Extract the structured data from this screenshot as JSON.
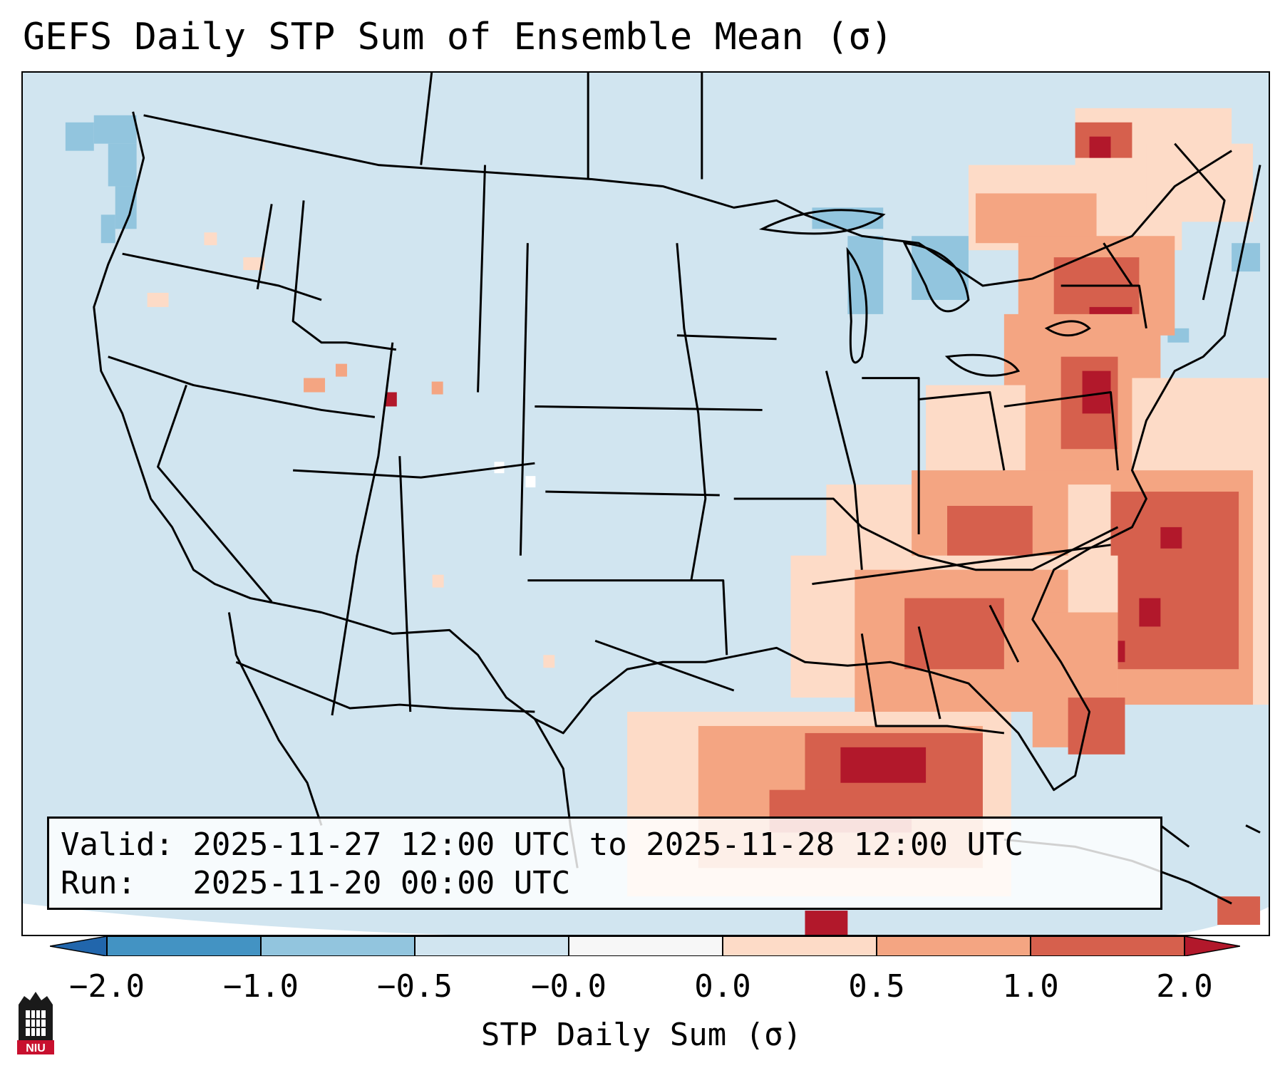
{
  "title": "GEFS Daily STP Sum of Ensemble Mean (σ)",
  "info": {
    "valid": "Valid: 2025-11-27 12:00 UTC to 2025-11-28 12:00 UTC",
    "run": "Run:   2025-11-20 00:00 UTC"
  },
  "colorbar": {
    "label": "STP Daily Sum (σ)",
    "ticks": [
      "−2.0",
      "−1.0",
      "−0.5",
      "−0.0",
      "0.0",
      "0.5",
      "1.0",
      "2.0"
    ],
    "colors": [
      "#2166ac",
      "#4393c3",
      "#92c5de",
      "#d1e5f0",
      "#f7f7f7",
      "#fddbc7",
      "#f4a582",
      "#d6604d",
      "#b2182b"
    ]
  },
  "logo": {
    "text": "NIU"
  }
}
